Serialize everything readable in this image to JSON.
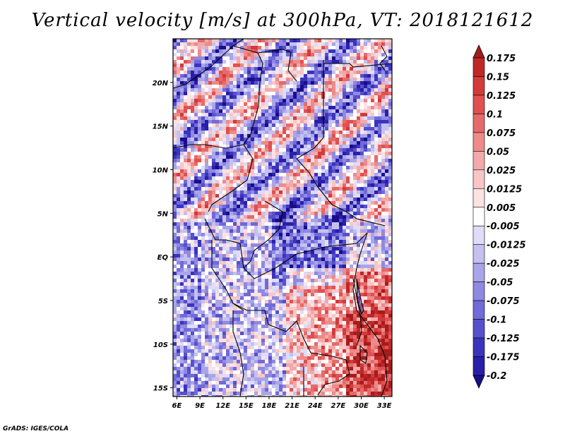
{
  "chart_data": {
    "type": "heatmap",
    "title": "Vertical velocity [m/s] at 300hPa, VT: 2018121612",
    "x_ticks": [
      "6E",
      "9E",
      "12E",
      "15E",
      "18E",
      "21E",
      "24E",
      "27E",
      "30E",
      "33E"
    ],
    "x_values": [
      6,
      9,
      12,
      15,
      18,
      21,
      24,
      27,
      30,
      33
    ],
    "y_ticks": [
      "20N",
      "15N",
      "10N",
      "5N",
      "EQ",
      "5S",
      "10S",
      "15S"
    ],
    "y_values": [
      20,
      15,
      10,
      5,
      0,
      -5,
      -10,
      -15
    ],
    "xlim": [
      5.5,
      34.0
    ],
    "ylim": [
      -16.0,
      25.0
    ],
    "colorbar": {
      "levels": [
        "0.175",
        "0.15",
        "0.125",
        "0.1",
        "0.075",
        "0.05",
        "0.025",
        "0.0125",
        "0.005",
        "-0.005",
        "-0.0125",
        "-0.025",
        "-0.05",
        "-0.075",
        "-0.1",
        "-0.125",
        "-0.175",
        "-0.2"
      ],
      "colors": [
        "#a51c1c",
        "#c02828",
        "#d33a3a",
        "#e05050",
        "#e66a6a",
        "#ed8a8a",
        "#f3a9a9",
        "#f8c6c6",
        "#fde2e2",
        "#ffffff",
        "#dedcf7",
        "#c4c1f0",
        "#a9a5e9",
        "#8f89e2",
        "#716ad9",
        "#5650cc",
        "#3a34bd",
        "#2a1fa8",
        "#1a0d8a"
      ]
    },
    "pattern_notes": {
      "north": "mixed blue and red streaks oriented SW-NE",
      "central_congo": "predominantly blue (downward)",
      "southeast": "strong red (upward), values up to 0.175"
    }
  },
  "footer": {
    "credit": "GrADS: IGES/COLA"
  }
}
